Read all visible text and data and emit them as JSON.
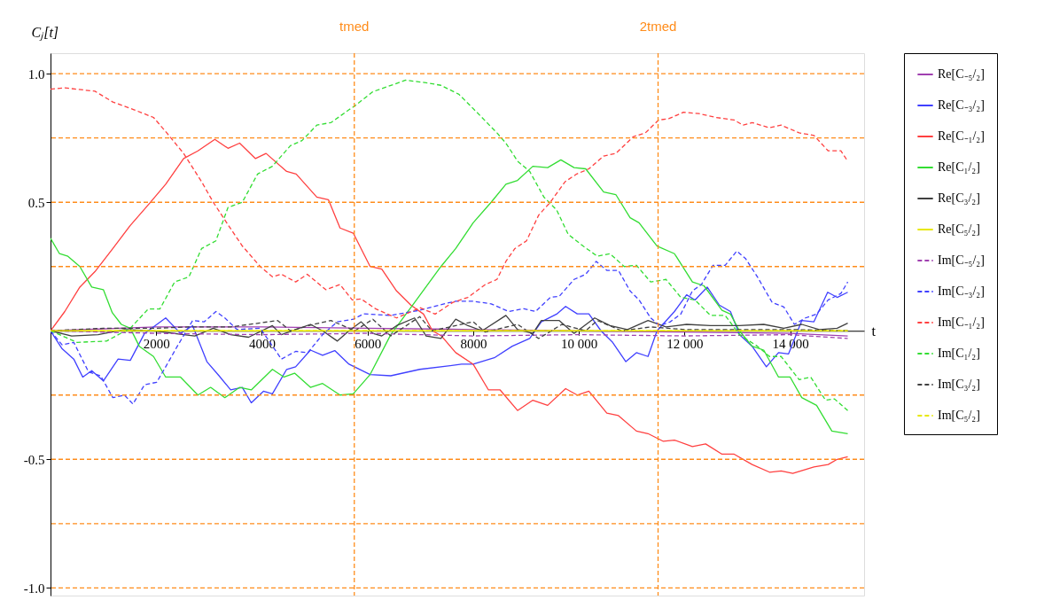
{
  "chart_data": {
    "type": "line",
    "xlabel": "t",
    "ylabel": "Cⱼ[t]",
    "xlim": [
      0,
      15400
    ],
    "ylim": [
      -1.03,
      1.08
    ],
    "xticks": [
      2000,
      4000,
      6000,
      8000,
      {
        "value": 10000,
        "label": "10 000"
      },
      {
        "value": 12000,
        "label": "12 000"
      },
      {
        "value": 14000,
        "label": "14 000"
      }
    ],
    "yticks": [
      {
        "value": -1,
        "label": "-1.0"
      },
      -0.5,
      0.5,
      {
        "value": 1,
        "label": "1.0"
      }
    ],
    "legend": "right",
    "ref_lines": [
      {
        "axis": "y",
        "value": 1,
        "color": "#ff8c1a",
        "line_style": "dashed"
      },
      {
        "axis": "y",
        "value": 0.75,
        "color": "#ff8c1a",
        "line_style": "dashed"
      },
      {
        "axis": "y",
        "value": 0.5,
        "color": "#ff8c1a",
        "line_style": "dashed"
      },
      {
        "axis": "y",
        "value": 0.25,
        "color": "#ff8c1a",
        "line_style": "dashed"
      },
      {
        "axis": "y",
        "value": -0.25,
        "color": "#ff8c1a",
        "line_style": "dashed"
      },
      {
        "axis": "y",
        "value": -0.5,
        "color": "#ff8c1a",
        "line_style": "dashed"
      },
      {
        "axis": "y",
        "value": -0.75,
        "color": "#ff8c1a",
        "line_style": "dashed"
      },
      {
        "axis": "y",
        "value": -1,
        "color": "#ff8c1a",
        "line_style": "dashed"
      },
      {
        "axis": "x",
        "value": 5750,
        "label": "tmed",
        "color": "#ff8c1a",
        "line_style": "dashed"
      },
      {
        "axis": "x",
        "value": 11500,
        "label": "2tmed",
        "color": "#ff8c1a",
        "line_style": "dashed"
      }
    ],
    "series": [
      {
        "name": "Re[C₋₅/₂]",
        "color": "#a040b0",
        "line_style": "solid",
        "x": [
          0,
          2000,
          4000,
          6000,
          8000,
          10000,
          12000,
          14000,
          15090
        ],
        "values": [
          0,
          0.015,
          0.015,
          0.01,
          0.005,
          0.0,
          -0.005,
          -0.01,
          -0.02
        ]
      },
      {
        "name": "Re[C₋₃/₂]",
        "color": "#4040ff",
        "line_style": "solid",
        "x": [
          0,
          220,
          440,
          610,
          780,
          1000,
          1280,
          1510,
          1780,
          2180,
          2460,
          2690,
          2960,
          3190,
          3410,
          3630,
          3800,
          4030,
          4200,
          4470,
          4640,
          4920,
          5150,
          5380,
          5650,
          6050,
          6440,
          6990,
          7780,
          8000,
          8400,
          8740,
          9070,
          9290,
          9580,
          9750,
          9970,
          10190,
          10420,
          10640,
          10890,
          11090,
          11310,
          11480,
          11810,
          12040,
          12200,
          12430,
          12660,
          12870,
          13040,
          13280,
          13550,
          13780,
          13970,
          14220,
          14450,
          14710,
          14890,
          15090
        ],
        "values": [
          0,
          -0.07,
          -0.11,
          -0.18,
          -0.155,
          -0.195,
          -0.11,
          -0.115,
          -0.01,
          0.05,
          -0.01,
          0.02,
          -0.12,
          -0.175,
          -0.23,
          -0.22,
          -0.28,
          -0.235,
          -0.245,
          -0.15,
          -0.14,
          -0.075,
          -0.095,
          -0.077,
          -0.13,
          -0.17,
          -0.175,
          -0.15,
          -0.13,
          -0.13,
          -0.105,
          -0.06,
          -0.03,
          0.035,
          0.065,
          0.095,
          0.066,
          0.066,
          0.0,
          -0.045,
          -0.12,
          -0.085,
          -0.1,
          0.0,
          0.075,
          0.14,
          0.12,
          0.17,
          0.1,
          0.075,
          -0.015,
          -0.06,
          -0.14,
          -0.085,
          -0.09,
          0.04,
          0.035,
          0.15,
          0.13,
          0.15
        ]
      },
      {
        "name": "Re[C₋₁/₂]",
        "color": "#ff4040",
        "line_style": "solid",
        "x": [
          0,
          270,
          555,
          840,
          1180,
          1510,
          1850,
          2180,
          2520,
          2790,
          3110,
          3360,
          3580,
          3880,
          4080,
          4470,
          4650,
          5040,
          5260,
          5480,
          5730,
          6050,
          6270,
          6550,
          6820,
          7060,
          7230,
          7400,
          7670,
          8000,
          8290,
          8510,
          8840,
          9130,
          9410,
          9750,
          9970,
          10190,
          10530,
          10750,
          11090,
          11310,
          11600,
          11810,
          12150,
          12400,
          12710,
          12940,
          13280,
          13610,
          13830,
          14050,
          14450,
          14720,
          14890,
          15090
        ],
        "values": [
          0,
          0.075,
          0.17,
          0.23,
          0.32,
          0.41,
          0.49,
          0.57,
          0.67,
          0.7,
          0.745,
          0.71,
          0.73,
          0.67,
          0.69,
          0.62,
          0.61,
          0.52,
          0.51,
          0.4,
          0.38,
          0.25,
          0.24,
          0.155,
          0.1,
          0.065,
          0.0,
          -0.02,
          -0.085,
          -0.13,
          -0.23,
          -0.23,
          -0.31,
          -0.27,
          -0.29,
          -0.225,
          -0.25,
          -0.235,
          -0.32,
          -0.33,
          -0.39,
          -0.4,
          -0.43,
          -0.425,
          -0.45,
          -0.44,
          -0.48,
          -0.48,
          -0.52,
          -0.55,
          -0.545,
          -0.555,
          -0.53,
          -0.52,
          -0.5,
          -0.49
        ]
      },
      {
        "name": "Re[C₁/₂]",
        "color": "#33dd33",
        "line_style": "solid",
        "x": [
          0,
          170,
          330,
          555,
          780,
          1000,
          1170,
          1340,
          1510,
          1680,
          1950,
          2180,
          2460,
          2790,
          3030,
          3300,
          3580,
          3800,
          4200,
          4420,
          4620,
          4920,
          5150,
          5480,
          5730,
          6050,
          6440,
          6890,
          7390,
          7670,
          8000,
          8340,
          8620,
          8840,
          9130,
          9410,
          9660,
          9910,
          10130,
          10470,
          10700,
          10970,
          11140,
          11480,
          11810,
          12150,
          12370,
          12710,
          12870,
          13040,
          13280,
          13500,
          13780,
          14000,
          14220,
          14500,
          14790,
          15090
        ],
        "values": [
          0.36,
          0.3,
          0.29,
          0.25,
          0.17,
          0.16,
          0.07,
          0.025,
          0.01,
          -0.06,
          -0.1,
          -0.18,
          -0.18,
          -0.25,
          -0.22,
          -0.26,
          -0.22,
          -0.23,
          -0.15,
          -0.18,
          -0.165,
          -0.22,
          -0.205,
          -0.25,
          -0.245,
          -0.17,
          -0.015,
          0.11,
          0.25,
          0.32,
          0.42,
          0.5,
          0.57,
          0.585,
          0.64,
          0.635,
          0.665,
          0.635,
          0.63,
          0.54,
          0.53,
          0.44,
          0.42,
          0.33,
          0.3,
          0.19,
          0.175,
          0.08,
          0.065,
          0.0,
          -0.06,
          -0.075,
          -0.18,
          -0.18,
          -0.26,
          -0.29,
          -0.39,
          -0.4
        ]
      },
      {
        "name": "Re[C₃/₂]",
        "color": "#404040",
        "line_style": "solid",
        "x": [
          0,
          400,
          900,
          1400,
          1950,
          2520,
          2730,
          3080,
          3410,
          3750,
          4200,
          4370,
          4920,
          5150,
          5430,
          5650,
          5880,
          6100,
          6270,
          6550,
          6890,
          7110,
          7390,
          7670,
          7900,
          8170,
          8620,
          8840,
          9130,
          9290,
          9630,
          9910,
          10300,
          10590,
          10920,
          11310,
          11650,
          12040,
          12490,
          13040,
          13500,
          13880,
          14220,
          14550,
          14890,
          15090
        ],
        "values": [
          0,
          -0.02,
          -0.015,
          0.005,
          0.0,
          -0.015,
          -0.02,
          0.01,
          -0.015,
          -0.025,
          0.02,
          -0.015,
          0.025,
          0.0,
          -0.04,
          0.0,
          0.035,
          -0.01,
          -0.02,
          0.02,
          0.05,
          -0.02,
          -0.03,
          0.045,
          0.02,
          0.0,
          0.06,
          0.005,
          -0.01,
          0.04,
          0.04,
          -0.01,
          0.05,
          0.02,
          0.005,
          0.04,
          0.015,
          0.025,
          0.02,
          0.02,
          0.025,
          0.01,
          0.025,
          0.005,
          0.01,
          0.03
        ]
      },
      {
        "name": "Re[C₅/₂]",
        "color": "#e8e800",
        "line_style": "solid",
        "x": [
          0,
          7500,
          15090
        ],
        "values": [
          0,
          0,
          0
        ]
      },
      {
        "name": "Im[C₋₅/₂]",
        "color": "#a040b0",
        "line_style": "dashed",
        "x": [
          0,
          2000,
          4000,
          6000,
          8000,
          10000,
          12000,
          14000,
          15090
        ],
        "values": [
          0,
          -0.01,
          -0.015,
          -0.01,
          -0.02,
          -0.015,
          -0.02,
          -0.015,
          -0.03
        ]
      },
      {
        "name": "Im[C₋₃/₂]",
        "color": "#4040ff",
        "line_style": "dashed",
        "x": [
          0,
          220,
          440,
          720,
          950,
          1180,
          1400,
          1560,
          1780,
          2010,
          2180,
          2400,
          2690,
          2910,
          3130,
          3300,
          3530,
          3970,
          4370,
          4640,
          4870,
          5150,
          5430,
          5730,
          5930,
          6440,
          6990,
          7450,
          7670,
          8000,
          8340,
          8670,
          8960,
          9180,
          9460,
          9630,
          9910,
          10130,
          10330,
          10530,
          10750,
          10970,
          11140,
          11360,
          11530,
          11730,
          11930,
          12150,
          12320,
          12540,
          12770,
          12990,
          13160,
          13380,
          13660,
          13880,
          14080,
          14290,
          14500,
          14720,
          14960,
          15090
        ],
        "values": [
          0,
          -0.055,
          -0.045,
          -0.16,
          -0.175,
          -0.26,
          -0.25,
          -0.285,
          -0.21,
          -0.2,
          -0.14,
          -0.06,
          0.04,
          0.035,
          0.075,
          0.05,
          0.005,
          0.01,
          -0.11,
          -0.08,
          -0.085,
          -0.015,
          0.035,
          0.045,
          0.066,
          0.06,
          0.08,
          0.105,
          0.115,
          0.115,
          0.105,
          0.075,
          0.086,
          0.075,
          0.13,
          0.134,
          0.2,
          0.22,
          0.27,
          0.235,
          0.235,
          0.155,
          0.12,
          0.05,
          0.02,
          0.035,
          0.065,
          0.155,
          0.18,
          0.255,
          0.255,
          0.31,
          0.28,
          0.21,
          0.11,
          0.093,
          0.025,
          0.05,
          0.065,
          0.12,
          0.145,
          0.19
        ]
      },
      {
        "name": "Im[C₋₁/₂]",
        "color": "#ff4040",
        "line_style": "dashed",
        "x": [
          0,
          270,
          840,
          1180,
          1580,
          1950,
          2200,
          2520,
          2860,
          3080,
          3400,
          3630,
          3970,
          4200,
          4370,
          4640,
          4860,
          5210,
          5480,
          5710,
          5880,
          6150,
          6380,
          6550,
          6780,
          6990,
          7280,
          7610,
          7900,
          8230,
          8450,
          8620,
          8790,
          9010,
          9240,
          9460,
          9740,
          9960,
          10190,
          10470,
          10700,
          11030,
          11260,
          11510,
          11700,
          11980,
          12270,
          12600,
          12940,
          13110,
          13280,
          13610,
          13830,
          14170,
          14450,
          14720,
          14960,
          15090
        ],
        "values": [
          0.94,
          0.945,
          0.932,
          0.89,
          0.86,
          0.83,
          0.77,
          0.69,
          0.58,
          0.5,
          0.4,
          0.33,
          0.25,
          0.21,
          0.22,
          0.19,
          0.22,
          0.16,
          0.18,
          0.12,
          0.124,
          0.086,
          0.065,
          0.05,
          0.07,
          0.09,
          0.065,
          0.11,
          0.13,
          0.18,
          0.2,
          0.27,
          0.32,
          0.35,
          0.45,
          0.5,
          0.58,
          0.61,
          0.63,
          0.68,
          0.69,
          0.755,
          0.77,
          0.82,
          0.825,
          0.85,
          0.845,
          0.83,
          0.82,
          0.8,
          0.81,
          0.79,
          0.8,
          0.77,
          0.76,
          0.7,
          0.7,
          0.66
        ]
      },
      {
        "name": "Im[C₁/₂]",
        "color": "#33dd33",
        "line_style": "dashed",
        "x": [
          0,
          500,
          1060,
          1510,
          1850,
          2070,
          2350,
          2620,
          2860,
          3130,
          3360,
          3630,
          3920,
          4200,
          4540,
          4760,
          5040,
          5310,
          5650,
          5760,
          6100,
          6380,
          6720,
          7110,
          7390,
          7730,
          8070,
          8450,
          8620,
          8840,
          9070,
          9340,
          9580,
          9800,
          10080,
          10350,
          10590,
          10860,
          11090,
          11360,
          11650,
          11930,
          12200,
          12490,
          12770,
          13040,
          13380,
          13610,
          13830,
          14170,
          14390,
          14670,
          14840,
          15090
        ],
        "values": [
          0,
          -0.045,
          -0.04,
          0.01,
          0.085,
          0.085,
          0.19,
          0.21,
          0.32,
          0.35,
          0.48,
          0.5,
          0.61,
          0.64,
          0.72,
          0.74,
          0.8,
          0.81,
          0.86,
          0.875,
          0.93,
          0.95,
          0.975,
          0.965,
          0.955,
          0.92,
          0.85,
          0.77,
          0.73,
          0.66,
          0.62,
          0.52,
          0.47,
          0.375,
          0.33,
          0.29,
          0.3,
          0.25,
          0.255,
          0.19,
          0.2,
          0.13,
          0.12,
          0.06,
          0.06,
          -0.015,
          -0.06,
          -0.1,
          -0.1,
          -0.19,
          -0.18,
          -0.27,
          -0.265,
          -0.31
        ]
      },
      {
        "name": "Im[C₃/₂]",
        "color": "#404040",
        "line_style": "dashed",
        "x": [
          0,
          1000,
          2000,
          2620,
          3410,
          4300,
          4540,
          4980,
          5310,
          5760,
          6100,
          6440,
          6990,
          7220,
          8000,
          8230,
          8840,
          9240,
          9680,
          10130,
          10350,
          10810,
          11360,
          12000,
          13000,
          14000,
          15090
        ],
        "values": [
          0,
          0.01,
          0.01,
          0.015,
          0.015,
          0.04,
          0.0,
          0.025,
          0.04,
          0.0,
          0.045,
          -0.02,
          0.055,
          0.0,
          0.035,
          -0.005,
          0.025,
          -0.03,
          0.025,
          0.0,
          0.04,
          0.0,
          0.015,
          0.005,
          0.005,
          0.005,
          0.0
        ]
      },
      {
        "name": "Im[C₅/₂]",
        "color": "#e8e800",
        "line_style": "dashed",
        "x": [
          0,
          7500,
          15090
        ],
        "values": [
          0,
          0,
          0
        ]
      }
    ]
  }
}
